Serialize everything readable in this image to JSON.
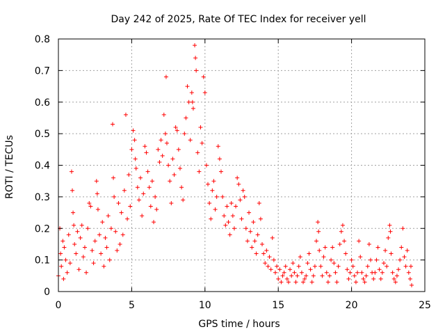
{
  "chart_data": {
    "type": "scatter",
    "title": "Day 242 of 2025, Rate Of TEC Index for receiver yell",
    "xlabel": "GPS time / hours",
    "ylabel": "ROTI / TECUs",
    "xlim": [
      0,
      25
    ],
    "ylim": [
      0,
      0.8
    ],
    "xticks": [
      0,
      5,
      10,
      15,
      20,
      25
    ],
    "xtick_labels": [
      "0",
      "5",
      "10",
      "15",
      "20",
      "25"
    ],
    "yticks": [
      0,
      0.1,
      0.2,
      0.3,
      0.4,
      0.5,
      0.6,
      0.7,
      0.8
    ],
    "ytick_labels": [
      "0",
      "0.1",
      "0.2",
      "0.3",
      "0.4",
      "0.5",
      "0.6",
      "0.7",
      "0.8"
    ],
    "grid": true,
    "marker": "plus",
    "color": "#ff0000",
    "series": [
      {
        "name": "ROTI",
        "points": [
          [
            0.0,
            0.05
          ],
          [
            0.1,
            0.2
          ],
          [
            0.15,
            0.12
          ],
          [
            0.2,
            0.08
          ],
          [
            0.3,
            0.16
          ],
          [
            0.35,
            0.04
          ],
          [
            0.4,
            0.14
          ],
          [
            0.5,
            0.1
          ],
          [
            0.6,
            0.06
          ],
          [
            0.7,
            0.18
          ],
          [
            0.8,
            0.09
          ],
          [
            0.9,
            0.38
          ],
          [
            0.95,
            0.32
          ],
          [
            1.0,
            0.25
          ],
          [
            1.05,
            0.21
          ],
          [
            1.1,
            0.15
          ],
          [
            1.2,
            0.12
          ],
          [
            1.3,
            0.19
          ],
          [
            1.4,
            0.07
          ],
          [
            1.5,
            0.17
          ],
          [
            1.6,
            0.21
          ],
          [
            1.7,
            0.11
          ],
          [
            1.8,
            0.14
          ],
          [
            1.9,
            0.06
          ],
          [
            2.0,
            0.2
          ],
          [
            2.1,
            0.28
          ],
          [
            2.2,
            0.27
          ],
          [
            2.3,
            0.13
          ],
          [
            2.4,
            0.09
          ],
          [
            2.5,
            0.16
          ],
          [
            2.6,
            0.35
          ],
          [
            2.65,
            0.31
          ],
          [
            2.7,
            0.26
          ],
          [
            2.8,
            0.18
          ],
          [
            2.9,
            0.12
          ],
          [
            3.0,
            0.22
          ],
          [
            3.1,
            0.08
          ],
          [
            3.2,
            0.17
          ],
          [
            3.3,
            0.14
          ],
          [
            3.4,
            0.24
          ],
          [
            3.5,
            0.1
          ],
          [
            3.6,
            0.2
          ],
          [
            3.7,
            0.53
          ],
          [
            3.75,
            0.36
          ],
          [
            3.8,
            0.3
          ],
          [
            3.9,
            0.19
          ],
          [
            4.0,
            0.13
          ],
          [
            4.1,
            0.28
          ],
          [
            4.2,
            0.15
          ],
          [
            4.3,
            0.25
          ],
          [
            4.4,
            0.18
          ],
          [
            4.5,
            0.32
          ],
          [
            4.6,
            0.56
          ],
          [
            4.7,
            0.23
          ],
          [
            4.8,
            0.37
          ],
          [
            4.9,
            0.27
          ],
          [
            5.0,
            0.45
          ],
          [
            5.1,
            0.51
          ],
          [
            5.2,
            0.48
          ],
          [
            5.25,
            0.42
          ],
          [
            5.3,
            0.39
          ],
          [
            5.4,
            0.33
          ],
          [
            5.5,
            0.29
          ],
          [
            5.6,
            0.36
          ],
          [
            5.7,
            0.24
          ],
          [
            5.8,
            0.31
          ],
          [
            5.9,
            0.46
          ],
          [
            6.0,
            0.44
          ],
          [
            6.1,
            0.38
          ],
          [
            6.2,
            0.33
          ],
          [
            6.3,
            0.27
          ],
          [
            6.4,
            0.35
          ],
          [
            6.5,
            0.22
          ],
          [
            6.6,
            0.3
          ],
          [
            6.7,
            0.26
          ],
          [
            6.8,
            0.45
          ],
          [
            6.9,
            0.41
          ],
          [
            7.0,
            0.48
          ],
          [
            7.1,
            0.43
          ],
          [
            7.2,
            0.56
          ],
          [
            7.3,
            0.5
          ],
          [
            7.35,
            0.68
          ],
          [
            7.4,
            0.47
          ],
          [
            7.5,
            0.4
          ],
          [
            7.6,
            0.35
          ],
          [
            7.7,
            0.28
          ],
          [
            7.8,
            0.42
          ],
          [
            7.9,
            0.37
          ],
          [
            8.0,
            0.52
          ],
          [
            8.1,
            0.51
          ],
          [
            8.2,
            0.45
          ],
          [
            8.3,
            0.39
          ],
          [
            8.4,
            0.33
          ],
          [
            8.5,
            0.29
          ],
          [
            8.6,
            0.5
          ],
          [
            8.7,
            0.55
          ],
          [
            8.8,
            0.65
          ],
          [
            8.9,
            0.6
          ],
          [
            9.0,
            0.48
          ],
          [
            9.1,
            0.63
          ],
          [
            9.15,
            0.6
          ],
          [
            9.2,
            0.58
          ],
          [
            9.3,
            0.78
          ],
          [
            9.35,
            0.74
          ],
          [
            9.4,
            0.7
          ],
          [
            9.5,
            0.44
          ],
          [
            9.6,
            0.38
          ],
          [
            9.7,
            0.52
          ],
          [
            9.8,
            0.47
          ],
          [
            9.9,
            0.68
          ],
          [
            10.0,
            0.63
          ],
          [
            10.1,
            0.4
          ],
          [
            10.2,
            0.34
          ],
          [
            10.3,
            0.28
          ],
          [
            10.4,
            0.23
          ],
          [
            10.5,
            0.32
          ],
          [
            10.6,
            0.35
          ],
          [
            10.7,
            0.26
          ],
          [
            10.8,
            0.3
          ],
          [
            10.9,
            0.46
          ],
          [
            11.0,
            0.42
          ],
          [
            11.1,
            0.38
          ],
          [
            11.2,
            0.3
          ],
          [
            11.3,
            0.24
          ],
          [
            11.4,
            0.21
          ],
          [
            11.5,
            0.27
          ],
          [
            11.6,
            0.22
          ],
          [
            11.7,
            0.18
          ],
          [
            11.8,
            0.28
          ],
          [
            11.9,
            0.24
          ],
          [
            12.0,
            0.2
          ],
          [
            12.1,
            0.27
          ],
          [
            12.2,
            0.36
          ],
          [
            12.3,
            0.34
          ],
          [
            12.4,
            0.29
          ],
          [
            12.5,
            0.23
          ],
          [
            12.6,
            0.32
          ],
          [
            12.7,
            0.3
          ],
          [
            12.8,
            0.2
          ],
          [
            12.9,
            0.16
          ],
          [
            13.0,
            0.25
          ],
          [
            13.1,
            0.19
          ],
          [
            13.2,
            0.14
          ],
          [
            13.3,
            0.22
          ],
          [
            13.4,
            0.16
          ],
          [
            13.5,
            0.12
          ],
          [
            13.6,
            0.18
          ],
          [
            13.7,
            0.28
          ],
          [
            13.8,
            0.23
          ],
          [
            13.9,
            0.15
          ],
          [
            14.0,
            0.12
          ],
          [
            14.1,
            0.09
          ],
          [
            14.2,
            0.13
          ],
          [
            14.3,
            0.08
          ],
          [
            14.4,
            0.11
          ],
          [
            14.5,
            0.07
          ],
          [
            14.6,
            0.17
          ],
          [
            14.7,
            0.1
          ],
          [
            14.8,
            0.06
          ],
          [
            14.9,
            0.08
          ],
          [
            15.0,
            0.04
          ],
          [
            15.1,
            0.07
          ],
          [
            15.2,
            0.03
          ],
          [
            15.3,
            0.05
          ],
          [
            15.4,
            0.06
          ],
          [
            15.5,
            0.08
          ],
          [
            15.6,
            0.04
          ],
          [
            15.7,
            0.03
          ],
          [
            15.8,
            0.07
          ],
          [
            15.9,
            0.05
          ],
          [
            16.0,
            0.09
          ],
          [
            16.1,
            0.06
          ],
          [
            16.2,
            0.03
          ],
          [
            16.3,
            0.05
          ],
          [
            16.4,
            0.08
          ],
          [
            16.5,
            0.11
          ],
          [
            16.6,
            0.06
          ],
          [
            16.7,
            0.03
          ],
          [
            16.8,
            0.04
          ],
          [
            16.9,
            0.05
          ],
          [
            17.0,
            0.09
          ],
          [
            17.1,
            0.12
          ],
          [
            17.2,
            0.07
          ],
          [
            17.3,
            0.03
          ],
          [
            17.4,
            0.05
          ],
          [
            17.5,
            0.08
          ],
          [
            17.6,
            0.16
          ],
          [
            17.7,
            0.22
          ],
          [
            17.75,
            0.19
          ],
          [
            17.8,
            0.13
          ],
          [
            17.9,
            0.08
          ],
          [
            18.0,
            0.05
          ],
          [
            18.1,
            0.11
          ],
          [
            18.2,
            0.14
          ],
          [
            18.3,
            0.06
          ],
          [
            18.4,
            0.03
          ],
          [
            18.5,
            0.05
          ],
          [
            18.6,
            0.1
          ],
          [
            18.7,
            0.14
          ],
          [
            18.8,
            0.09
          ],
          [
            18.9,
            0.06
          ],
          [
            19.0,
            0.03
          ],
          [
            19.1,
            0.08
          ],
          [
            19.2,
            0.15
          ],
          [
            19.3,
            0.19
          ],
          [
            19.4,
            0.21
          ],
          [
            19.5,
            0.16
          ],
          [
            19.6,
            0.12
          ],
          [
            19.7,
            0.07
          ],
          [
            19.8,
            0.04
          ],
          [
            19.9,
            0.06
          ],
          [
            20.0,
            0.1
          ],
          [
            20.1,
            0.08
          ],
          [
            20.2,
            0.05
          ],
          [
            20.3,
            0.03
          ],
          [
            20.4,
            0.06
          ],
          [
            20.5,
            0.16
          ],
          [
            20.6,
            0.11
          ],
          [
            20.7,
            0.06
          ],
          [
            20.8,
            0.04
          ],
          [
            20.9,
            0.03
          ],
          [
            21.0,
            0.05
          ],
          [
            21.1,
            0.08
          ],
          [
            21.2,
            0.15
          ],
          [
            21.3,
            0.1
          ],
          [
            21.4,
            0.06
          ],
          [
            21.5,
            0.04
          ],
          [
            21.6,
            0.06
          ],
          [
            21.7,
            0.1
          ],
          [
            21.8,
            0.14
          ],
          [
            21.9,
            0.07
          ],
          [
            22.0,
            0.04
          ],
          [
            22.1,
            0.06
          ],
          [
            22.2,
            0.09
          ],
          [
            22.3,
            0.13
          ],
          [
            22.4,
            0.08
          ],
          [
            22.5,
            0.17
          ],
          [
            22.6,
            0.21
          ],
          [
            22.65,
            0.19
          ],
          [
            22.7,
            0.12
          ],
          [
            22.8,
            0.06
          ],
          [
            22.9,
            0.04
          ],
          [
            23.0,
            0.03
          ],
          [
            23.1,
            0.05
          ],
          [
            23.2,
            0.07
          ],
          [
            23.3,
            0.1
          ],
          [
            23.4,
            0.14
          ],
          [
            23.5,
            0.2
          ],
          [
            23.6,
            0.11
          ],
          [
            23.7,
            0.08
          ],
          [
            23.8,
            0.13
          ],
          [
            23.9,
            0.06
          ],
          [
            24.0,
            0.04
          ],
          [
            24.05,
            0.08
          ],
          [
            24.1,
            0.02
          ]
        ]
      }
    ]
  }
}
